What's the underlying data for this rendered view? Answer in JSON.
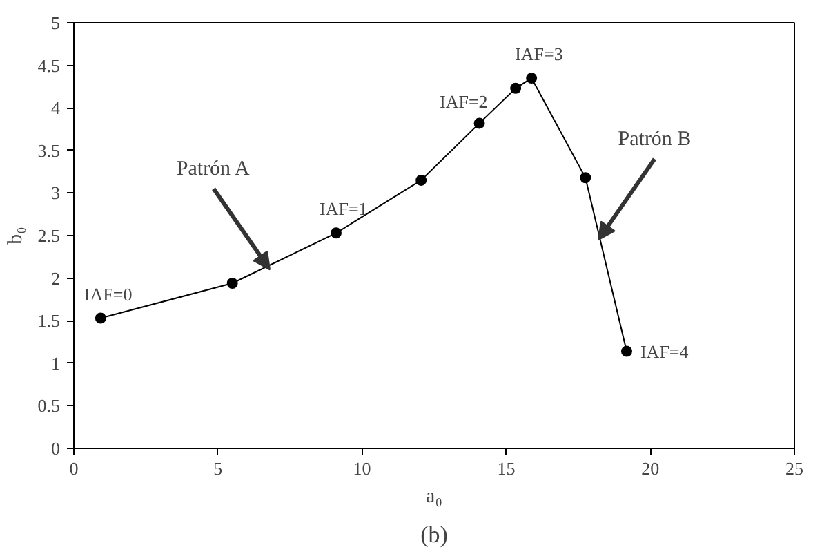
{
  "chart_data": {
    "type": "line",
    "xlabel": "a₀",
    "ylabel": "b₀",
    "x": [
      0.93,
      5.5,
      9.1,
      12.05,
      14.07,
      15.33,
      15.88,
      17.75,
      19.18
    ],
    "series": [
      {
        "color": "#000000",
        "values": [
          1.53,
          1.94,
          2.53,
          3.15,
          3.82,
          4.23,
          4.35,
          3.18,
          1.14
        ]
      }
    ],
    "marker": "circle",
    "line_style": "solid",
    "grid": false,
    "xlim": [
      0,
      25
    ],
    "xticks": [
      0,
      5,
      10,
      15,
      20,
      25
    ],
    "ylim": [
      0,
      5
    ],
    "yticks": [
      0,
      {
        "value": 0.5,
        "label": "0.5"
      },
      1,
      {
        "value": 1.5,
        "label": "1.5"
      },
      2,
      {
        "value": 2.5,
        "label": "2.5"
      },
      3,
      {
        "value": 3.5,
        "label": "3.5"
      },
      4,
      {
        "value": 4.5,
        "label": "4.5"
      },
      5
    ],
    "annotations": [
      {
        "text": "IAF=0",
        "x": 0.93,
        "y": 1.53
      },
      {
        "text": "IAF=1",
        "x": 9.1,
        "y": 2.53
      },
      {
        "text": "IAF=2",
        "x": 14.07,
        "y": 3.82
      },
      {
        "text": "IAF=3",
        "x": 15.88,
        "y": 4.35
      },
      {
        "text": "IAF=4",
        "x": 19.18,
        "y": 1.14
      },
      {
        "text": "Patrón A",
        "x": 6.8,
        "y": 2.1
      },
      {
        "text": "Patrón B",
        "x": 18.2,
        "y": 2.45
      },
      "(b)"
    ]
  }
}
